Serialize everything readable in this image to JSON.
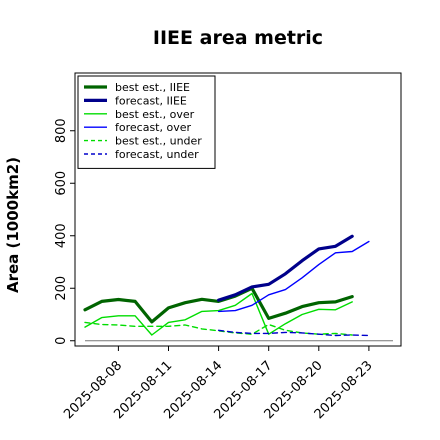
{
  "chart_data": {
    "type": "line",
    "title": "IIEE area metric",
    "xlabel": "",
    "ylabel": "Area (1000km2)",
    "ylim": [
      -20,
      1020
    ],
    "y_ticks": [
      0,
      200,
      400,
      600,
      800
    ],
    "grid": false,
    "legend_position": "top-left",
    "x_ticks": [
      {
        "label": "2025-08-08",
        "color": "#000000"
      },
      {
        "label": "2025-08-11",
        "color": "#000000"
      },
      {
        "label": "2025-08-14",
        "color": "#228b22"
      },
      {
        "label": "2025-08-17",
        "color": "#000000"
      },
      {
        "label": "2025-08-20",
        "color": "#000000"
      },
      {
        "label": "2025-08-23",
        "color": "#000000"
      }
    ],
    "x": [
      "2025-08-06",
      "2025-08-07",
      "2025-08-08",
      "2025-08-09",
      "2025-08-10",
      "2025-08-11",
      "2025-08-12",
      "2025-08-13",
      "2025-08-14",
      "2025-08-15",
      "2025-08-16",
      "2025-08-17",
      "2025-08-18",
      "2025-08-19",
      "2025-08-20",
      "2025-08-21",
      "2025-08-22",
      "2025-08-23"
    ],
    "baseline": 0,
    "series": [
      {
        "name": "best est., IIEE",
        "color": "#006400",
        "width": 3.2,
        "dash": "",
        "values": [
          118,
          150,
          157,
          150,
          72,
          125,
          145,
          158,
          150,
          170,
          200,
          85,
          105,
          130,
          145,
          148,
          168,
          null
        ]
      },
      {
        "name": "forecast, IIEE",
        "color": "#00008b",
        "width": 3.2,
        "dash": "",
        "values": [
          null,
          null,
          null,
          null,
          null,
          null,
          null,
          null,
          155,
          175,
          205,
          215,
          255,
          305,
          350,
          360,
          398,
          null
        ]
      },
      {
        "name": "best est., over",
        "color": "#00dd00",
        "width": 1.4,
        "dash": "",
        "values": [
          52,
          88,
          95,
          95,
          22,
          70,
          80,
          112,
          115,
          135,
          180,
          25,
          65,
          100,
          120,
          118,
          148,
          null
        ]
      },
      {
        "name": "forecast, over",
        "color": "#0000ff",
        "width": 1.4,
        "dash": "",
        "values": [
          null,
          null,
          null,
          null,
          null,
          null,
          null,
          null,
          112,
          115,
          135,
          175,
          195,
          240,
          290,
          335,
          340,
          378
        ]
      },
      {
        "name": "best est., under",
        "color": "#00dd00",
        "width": 1.4,
        "dash": "5,4",
        "values": [
          70,
          62,
          60,
          55,
          55,
          55,
          60,
          45,
          38,
          30,
          25,
          62,
          40,
          30,
          25,
          28,
          22,
          null
        ]
      },
      {
        "name": "forecast, under",
        "color": "#0000cc",
        "width": 1.4,
        "dash": "5,4",
        "values": [
          null,
          null,
          null,
          null,
          null,
          null,
          null,
          null,
          40,
          32,
          28,
          28,
          32,
          30,
          25,
          20,
          22,
          20
        ]
      }
    ]
  }
}
